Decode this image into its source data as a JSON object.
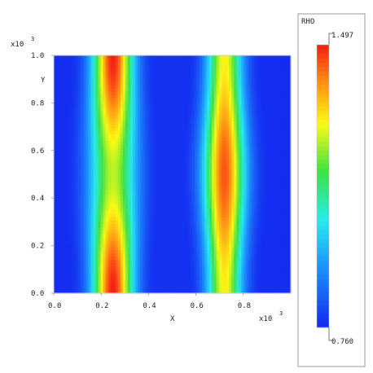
{
  "chart_data": {
    "type": "heatmap",
    "title": "",
    "xlabel": "X",
    "ylabel": "Y",
    "x_multiplier": "x10",
    "x_multiplier_exp": "3",
    "y_multiplier": "x10",
    "y_multiplier_exp": "3",
    "xlim": [
      0.0,
      1.0
    ],
    "ylim": [
      0.0,
      1.0
    ],
    "x_ticks": [
      "0.0",
      "0.2",
      "0.4",
      "0.6",
      "0.8"
    ],
    "y_ticks": [
      "0.0",
      "0.2",
      "0.4",
      "0.6",
      "0.8",
      "1.0"
    ],
    "field": {
      "name": "RHO",
      "min": 0.76,
      "max": 1.497,
      "min_label": "0.760",
      "max_label": "1.497",
      "colormap": "rainbow (blue-cyan-green-yellow-red)",
      "structure": [
        {
          "feature": "vertical band",
          "x_center": 0.25,
          "peak_value_at_y": [
            0.05,
            0.95
          ],
          "peak": 1.497,
          "saddle_y": 0.5,
          "saddle_value": 1.25
        },
        {
          "feature": "vertical band",
          "x_center": 0.72,
          "peak_value_at_y": [
            0.5
          ],
          "peak": 1.45,
          "end_value": 1.3
        },
        {
          "feature": "trough",
          "x_center": 0.5,
          "value": 0.76
        },
        {
          "feature": "trough",
          "x_center": 0.95,
          "value": 0.76
        }
      ]
    },
    "grid": false,
    "legend": "right"
  }
}
